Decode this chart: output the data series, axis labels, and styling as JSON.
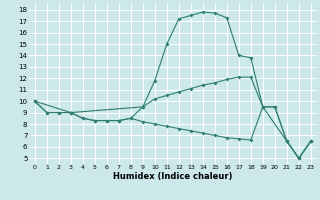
{
  "xlabel": "Humidex (Indice chaleur)",
  "bg_color": "#cce8e8",
  "grid_color": "#ffffff",
  "line_color": "#2e7d70",
  "xlim": [
    -0.5,
    23.5
  ],
  "ylim": [
    4.5,
    18.5
  ],
  "xticks": [
    0,
    1,
    2,
    3,
    4,
    5,
    6,
    7,
    8,
    9,
    10,
    11,
    12,
    13,
    14,
    15,
    16,
    17,
    18,
    19,
    20,
    21,
    22,
    23
  ],
  "yticks": [
    5,
    6,
    7,
    8,
    9,
    10,
    11,
    12,
    13,
    14,
    15,
    16,
    17,
    18
  ],
  "line1_x": [
    0,
    1,
    2,
    3,
    4,
    5,
    6,
    7,
    8,
    9,
    10,
    11,
    12,
    13,
    14,
    15,
    16,
    17,
    18,
    19,
    20,
    21,
    22,
    23
  ],
  "line1_y": [
    10,
    9,
    9,
    9,
    8.5,
    8.3,
    8.3,
    8.3,
    8.5,
    9.5,
    11.8,
    15.0,
    17.2,
    17.5,
    17.8,
    17.7,
    17.3,
    14.0,
    13.8,
    9.5,
    9.5,
    6.5,
    5.0,
    6.5
  ],
  "line2_x": [
    0,
    3,
    9,
    10,
    11,
    12,
    13,
    14,
    15,
    16,
    17,
    18,
    19,
    21,
    22,
    23
  ],
  "line2_y": [
    10,
    9,
    9.5,
    10.2,
    10.5,
    10.8,
    11.1,
    11.4,
    11.6,
    11.9,
    12.1,
    12.1,
    9.5,
    6.5,
    5.0,
    6.5
  ],
  "line3_x": [
    0,
    1,
    2,
    3,
    4,
    5,
    6,
    7,
    8,
    9,
    10,
    11,
    12,
    13,
    14,
    15,
    16,
    17,
    18,
    19,
    20,
    21,
    22,
    23
  ],
  "line3_y": [
    10,
    9,
    9,
    9,
    8.5,
    8.3,
    8.3,
    8.3,
    8.5,
    8.2,
    8.0,
    7.8,
    7.6,
    7.4,
    7.2,
    7.0,
    6.8,
    6.7,
    6.6,
    9.5,
    9.5,
    6.5,
    5.0,
    6.5
  ]
}
